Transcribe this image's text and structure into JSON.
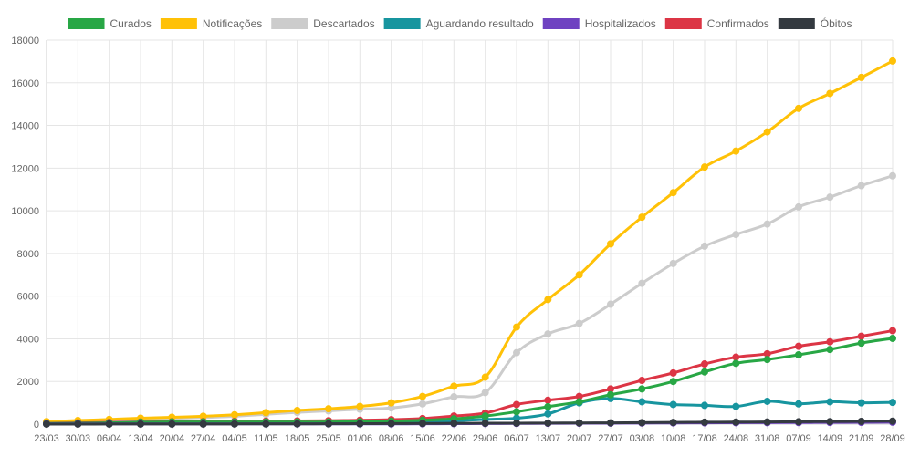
{
  "chart_data": {
    "type": "line",
    "title": "",
    "xlabel": "",
    "ylabel": "",
    "ylim": [
      0,
      18000
    ],
    "ytick_step": 2000,
    "yticks": [
      "0",
      "2000",
      "4000",
      "6000",
      "8000",
      "10000",
      "12000",
      "14000",
      "16000",
      "18000"
    ],
    "legend_position": "top-center",
    "grid": true,
    "categories": [
      "23/03",
      "30/03",
      "06/04",
      "13/04",
      "20/04",
      "27/04",
      "04/05",
      "11/05",
      "18/05",
      "25/05",
      "01/06",
      "08/06",
      "15/06",
      "22/06",
      "29/06",
      "06/07",
      "13/07",
      "20/07",
      "27/07",
      "03/08",
      "10/08",
      "17/08",
      "24/08",
      "31/08",
      "07/09",
      "14/09",
      "21/09",
      "28/09"
    ],
    "series": [
      {
        "name": "Curados",
        "color": "#28a745",
        "values": [
          30,
          40,
          60,
          90,
          100,
          100,
          100,
          100,
          100,
          100,
          120,
          140,
          180,
          250,
          380,
          580,
          820,
          1050,
          1380,
          1650,
          2000,
          2450,
          2850,
          3030,
          3250,
          3500,
          3800,
          4020
        ]
      },
      {
        "name": "Notificações",
        "color": "#ffc107",
        "values": [
          120,
          170,
          220,
          280,
          320,
          370,
          440,
          540,
          640,
          720,
          830,
          1000,
          1300,
          1780,
          2200,
          4550,
          5840,
          7000,
          8450,
          9700,
          10850,
          12050,
          12800,
          13700,
          14800,
          15500,
          16250,
          17020
        ]
      },
      {
        "name": "Descartados",
        "color": "#cccccc",
        "values": [
          80,
          120,
          170,
          220,
          270,
          310,
          370,
          460,
          550,
          620,
          700,
          760,
          950,
          1280,
          1480,
          3350,
          4230,
          4720,
          5620,
          6600,
          7530,
          8340,
          8890,
          9380,
          10180,
          10640,
          11180,
          11640
        ]
      },
      {
        "name": "Aguardando resultado",
        "color": "#17959f",
        "values": [
          20,
          30,
          40,
          60,
          80,
          40,
          50,
          60,
          70,
          80,
          90,
          100,
          110,
          150,
          220,
          280,
          480,
          1000,
          1200,
          1050,
          920,
          880,
          830,
          1070,
          950,
          1050,
          1000,
          1020
        ]
      },
      {
        "name": "Hospitalizados",
        "color": "#6f42c1",
        "values": [
          10,
          10,
          10,
          10,
          10,
          10,
          10,
          10,
          10,
          10,
          10,
          10,
          15,
          20,
          25,
          30,
          35,
          40,
          45,
          50,
          55,
          60,
          65,
          70,
          75,
          80,
          85,
          90
        ]
      },
      {
        "name": "Confirmados",
        "color": "#dc3545",
        "values": [
          40,
          60,
          80,
          100,
          110,
          120,
          130,
          140,
          150,
          160,
          180,
          210,
          260,
          380,
          520,
          920,
          1120,
          1300,
          1650,
          2050,
          2400,
          2820,
          3140,
          3300,
          3650,
          3860,
          4120,
          4380
        ]
      },
      {
        "name": "Óbitos",
        "color": "#343a40",
        "values": [
          1,
          2,
          3,
          4,
          5,
          6,
          8,
          10,
          12,
          15,
          20,
          25,
          30,
          35,
          40,
          45,
          50,
          55,
          60,
          70,
          80,
          90,
          95,
          100,
          110,
          120,
          130,
          140
        ]
      }
    ]
  }
}
